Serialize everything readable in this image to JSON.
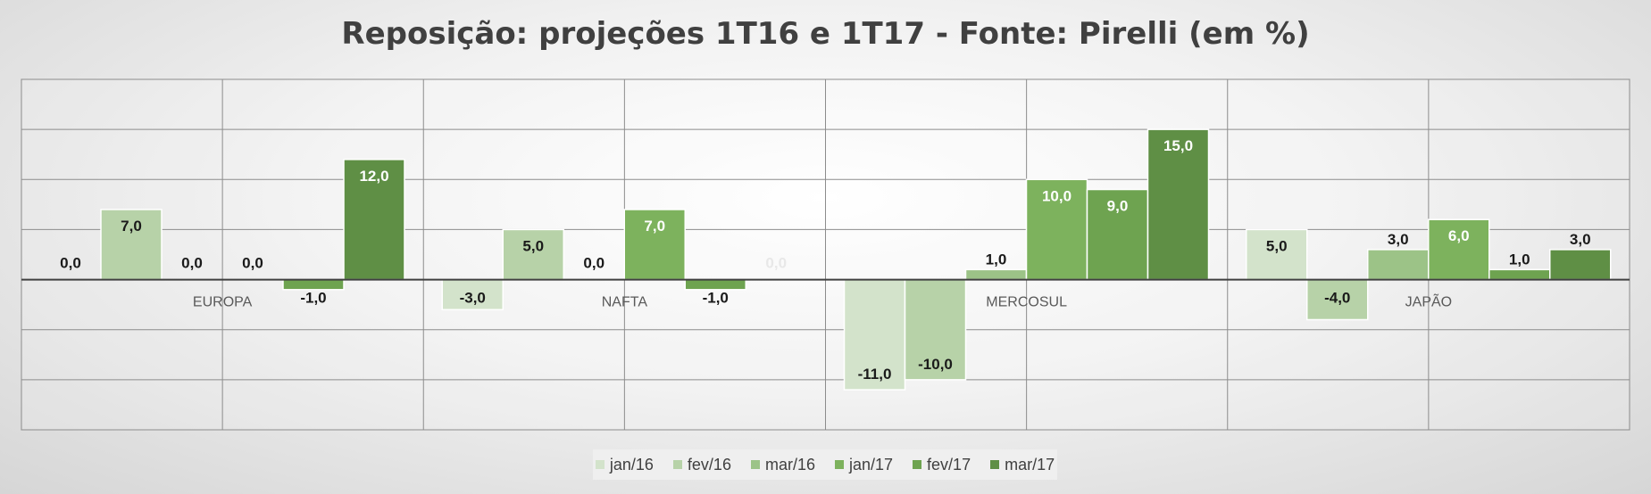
{
  "chart_data": {
    "type": "bar",
    "title": "Reposição: projeções 1T16 e 1T17 - Fonte: Pirelli (em %)",
    "categories": [
      "EUROPA",
      "NAFTA",
      "MERCOSUL",
      "JAPÃO"
    ],
    "series": [
      {
        "name": "jan/16",
        "color": "#d3e3cb",
        "values": [
          0.0,
          -3.0,
          -11.0,
          5.0
        ]
      },
      {
        "name": "fev/16",
        "color": "#b7d2a8",
        "values": [
          7.0,
          5.0,
          -10.0,
          -4.0
        ]
      },
      {
        "name": "mar/16",
        "color": "#9cc387",
        "values": [
          0.0,
          0.0,
          1.0,
          3.0
        ]
      },
      {
        "name": "jan/17",
        "color": "#7db25d",
        "values": [
          0.0,
          7.0,
          10.0,
          6.0
        ]
      },
      {
        "name": "fev/17",
        "color": "#6ea350",
        "values": [
          -1.0,
          -1.0,
          9.0,
          1.0
        ]
      },
      {
        "name": "mar/17",
        "color": "#5f8f45",
        "values": [
          12.0,
          0.0,
          15.0,
          3.0
        ]
      }
    ],
    "data_labels": [
      [
        "0,0",
        "-3,0",
        "-11,0",
        "5,0"
      ],
      [
        "7,0",
        "5,0",
        "-10,0",
        "-4,0"
      ],
      [
        "0,0",
        "0,0",
        "1,0",
        "3,0"
      ],
      [
        "0,0",
        "7,0",
        "10,0",
        "6,0"
      ],
      [
        "-1,0",
        "-1,0",
        "9,0",
        "1,0"
      ],
      [
        "12,0",
        "0,0",
        "15,0",
        "3,0"
      ]
    ],
    "ylim": [
      -15,
      20
    ],
    "grid": true,
    "legend_position": "bottom"
  }
}
